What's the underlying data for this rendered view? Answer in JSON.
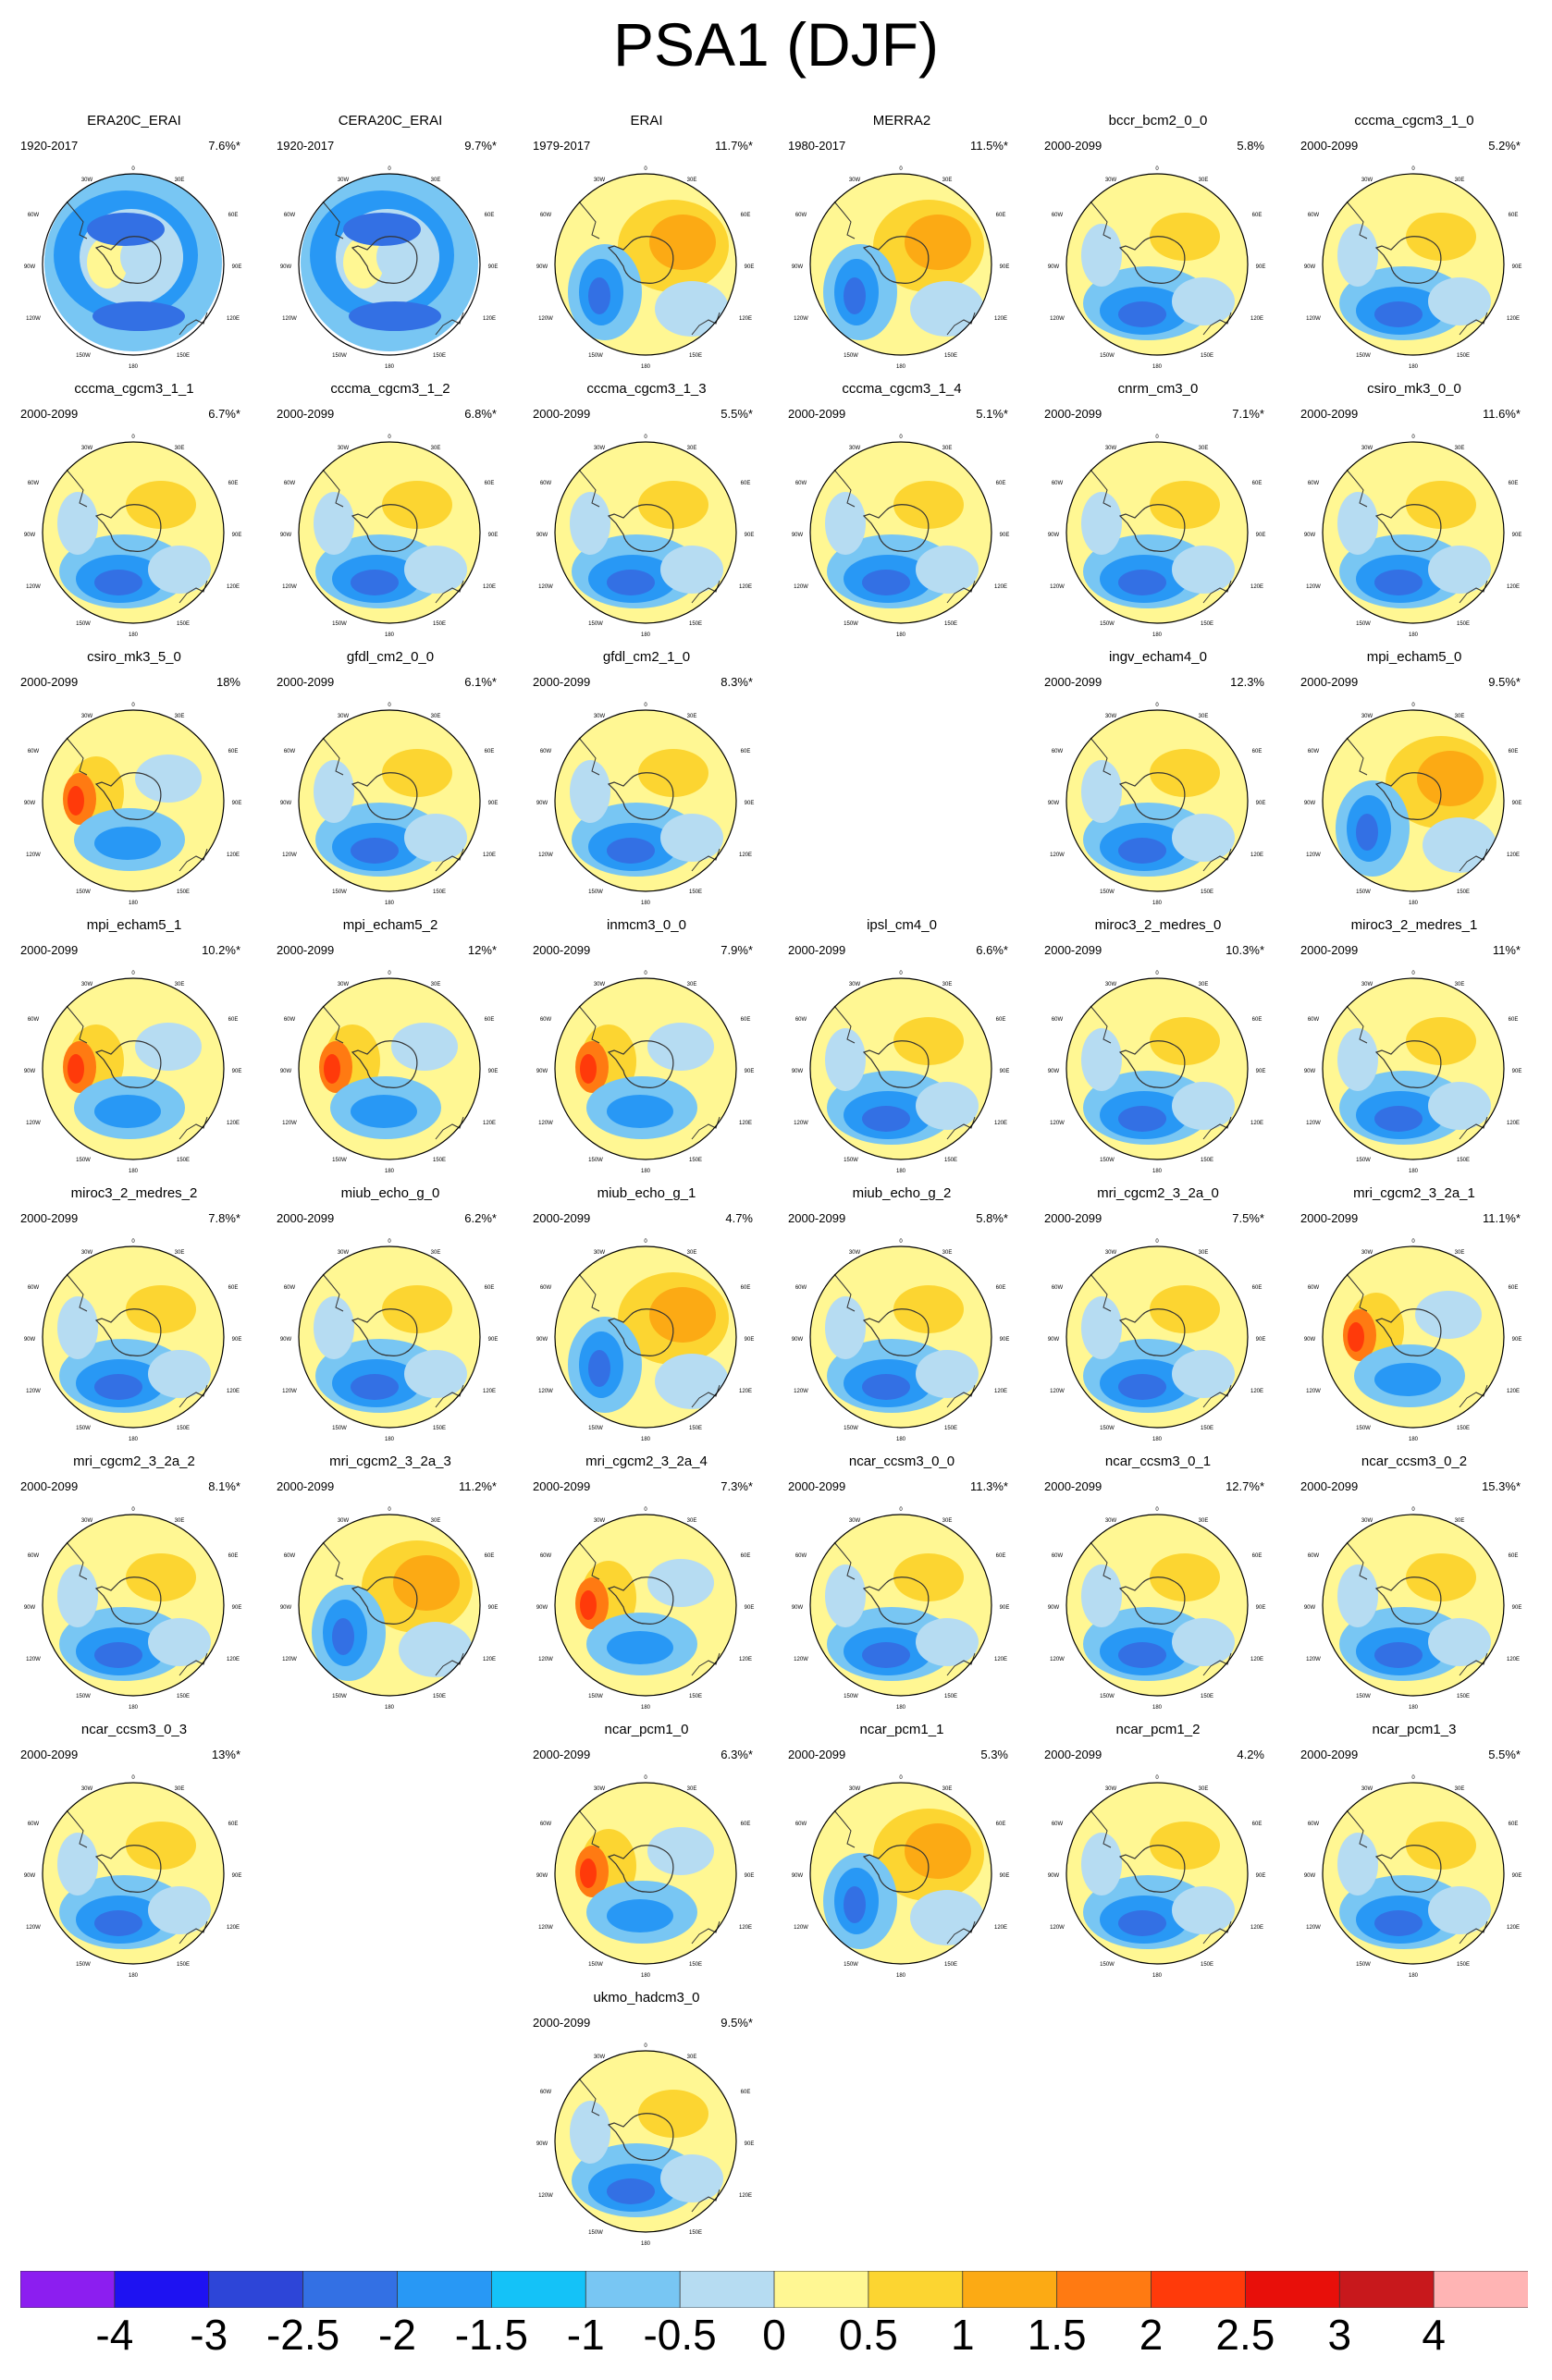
{
  "title": "PSA1 (DJF)",
  "grid_columns": 6,
  "panels": [
    {
      "name": "ERA20C_ERAI",
      "period": "1920-2017",
      "variance": "7.6%*",
      "row": 0,
      "col": 0,
      "scheme": "ring"
    },
    {
      "name": "CERA20C_ERAI",
      "period": "1920-2017",
      "variance": "9.7%*",
      "row": 0,
      "col": 1,
      "scheme": "ring"
    },
    {
      "name": "ERAI",
      "period": "1979-2017",
      "variance": "11.7%*",
      "row": 0,
      "col": 2,
      "scheme": "warm"
    },
    {
      "name": "MERRA2",
      "period": "1980-2017",
      "variance": "11.5%*",
      "row": 0,
      "col": 3,
      "scheme": "warm"
    },
    {
      "name": "bccr_bcm2_0_0",
      "period": "2000-2099",
      "variance": "5.8%",
      "row": 0,
      "col": 4,
      "scheme": "std"
    },
    {
      "name": "cccma_cgcm3_1_0",
      "period": "2000-2099",
      "variance": "5.2%*",
      "row": 0,
      "col": 5,
      "scheme": "std"
    },
    {
      "name": "cccma_cgcm3_1_1",
      "period": "2000-2099",
      "variance": "6.7%*",
      "row": 1,
      "col": 0,
      "scheme": "std"
    },
    {
      "name": "cccma_cgcm3_1_2",
      "period": "2000-2099",
      "variance": "6.8%*",
      "row": 1,
      "col": 1,
      "scheme": "std"
    },
    {
      "name": "cccma_cgcm3_1_3",
      "period": "2000-2099",
      "variance": "5.5%*",
      "row": 1,
      "col": 2,
      "scheme": "std"
    },
    {
      "name": "cccma_cgcm3_1_4",
      "period": "2000-2099",
      "variance": "5.1%*",
      "row": 1,
      "col": 3,
      "scheme": "std"
    },
    {
      "name": "cnrm_cm3_0",
      "period": "2000-2099",
      "variance": "7.1%*",
      "row": 1,
      "col": 4,
      "scheme": "std"
    },
    {
      "name": "csiro_mk3_0_0",
      "period": "2000-2099",
      "variance": "11.6%*",
      "row": 1,
      "col": 5,
      "scheme": "std"
    },
    {
      "name": "csiro_mk3_5_0",
      "period": "2000-2099",
      "variance": "18%",
      "row": 2,
      "col": 0,
      "scheme": "hot"
    },
    {
      "name": "gfdl_cm2_0_0",
      "period": "2000-2099",
      "variance": "6.1%*",
      "row": 2,
      "col": 1,
      "scheme": "std"
    },
    {
      "name": "gfdl_cm2_1_0",
      "period": "2000-2099",
      "variance": "8.3%*",
      "row": 2,
      "col": 2,
      "scheme": "std"
    },
    {
      "name": "ingv_echam4_0",
      "period": "2000-2099",
      "variance": "12.3%",
      "row": 2,
      "col": 4,
      "scheme": "std"
    },
    {
      "name": "mpi_echam5_0",
      "period": "2000-2099",
      "variance": "9.5%*",
      "row": 2,
      "col": 5,
      "scheme": "warm"
    },
    {
      "name": "mpi_echam5_1",
      "period": "2000-2099",
      "variance": "10.2%*",
      "row": 3,
      "col": 0,
      "scheme": "hot"
    },
    {
      "name": "mpi_echam5_2",
      "period": "2000-2099",
      "variance": "12%*",
      "row": 3,
      "col": 1,
      "scheme": "hot"
    },
    {
      "name": "inmcm3_0_0",
      "period": "2000-2099",
      "variance": "7.9%*",
      "row": 3,
      "col": 2,
      "scheme": "hot"
    },
    {
      "name": "ipsl_cm4_0",
      "period": "2000-2099",
      "variance": "6.6%*",
      "row": 3,
      "col": 3,
      "scheme": "std"
    },
    {
      "name": "miroc3_2_medres_0",
      "period": "2000-2099",
      "variance": "10.3%*",
      "row": 3,
      "col": 4,
      "scheme": "std"
    },
    {
      "name": "miroc3_2_medres_1",
      "period": "2000-2099",
      "variance": "11%*",
      "row": 3,
      "col": 5,
      "scheme": "std"
    },
    {
      "name": "miroc3_2_medres_2",
      "period": "2000-2099",
      "variance": "7.8%*",
      "row": 4,
      "col": 0,
      "scheme": "std"
    },
    {
      "name": "miub_echo_g_0",
      "period": "2000-2099",
      "variance": "6.2%*",
      "row": 4,
      "col": 1,
      "scheme": "std"
    },
    {
      "name": "miub_echo_g_1",
      "period": "2000-2099",
      "variance": "4.7%",
      "row": 4,
      "col": 2,
      "scheme": "warm"
    },
    {
      "name": "miub_echo_g_2",
      "period": "2000-2099",
      "variance": "5.8%*",
      "row": 4,
      "col": 3,
      "scheme": "std"
    },
    {
      "name": "mri_cgcm2_3_2a_0",
      "period": "2000-2099",
      "variance": "7.5%*",
      "row": 4,
      "col": 4,
      "scheme": "std"
    },
    {
      "name": "mri_cgcm2_3_2a_1",
      "period": "2000-2099",
      "variance": "11.1%*",
      "row": 4,
      "col": 5,
      "scheme": "hot"
    },
    {
      "name": "mri_cgcm2_3_2a_2",
      "period": "2000-2099",
      "variance": "8.1%*",
      "row": 5,
      "col": 0,
      "scheme": "std"
    },
    {
      "name": "mri_cgcm2_3_2a_3",
      "period": "2000-2099",
      "variance": "11.2%*",
      "row": 5,
      "col": 1,
      "scheme": "warm"
    },
    {
      "name": "mri_cgcm2_3_2a_4",
      "period": "2000-2099",
      "variance": "7.3%*",
      "row": 5,
      "col": 2,
      "scheme": "hot"
    },
    {
      "name": "ncar_ccsm3_0_0",
      "period": "2000-2099",
      "variance": "11.3%*",
      "row": 5,
      "col": 3,
      "scheme": "std"
    },
    {
      "name": "ncar_ccsm3_0_1",
      "period": "2000-2099",
      "variance": "12.7%*",
      "row": 5,
      "col": 4,
      "scheme": "std"
    },
    {
      "name": "ncar_ccsm3_0_2",
      "period": "2000-2099",
      "variance": "15.3%*",
      "row": 5,
      "col": 5,
      "scheme": "std"
    },
    {
      "name": "ncar_ccsm3_0_3",
      "period": "2000-2099",
      "variance": "13%*",
      "row": 6,
      "col": 0,
      "scheme": "std"
    },
    {
      "name": "ncar_pcm1_0",
      "period": "2000-2099",
      "variance": "6.3%*",
      "row": 6,
      "col": 2,
      "scheme": "hot"
    },
    {
      "name": "ncar_pcm1_1",
      "period": "2000-2099",
      "variance": "5.3%",
      "row": 6,
      "col": 3,
      "scheme": "warm"
    },
    {
      "name": "ncar_pcm1_2",
      "period": "2000-2099",
      "variance": "4.2%",
      "row": 6,
      "col": 4,
      "scheme": "std"
    },
    {
      "name": "ncar_pcm1_3",
      "period": "2000-2099",
      "variance": "5.5%*",
      "row": 6,
      "col": 5,
      "scheme": "std"
    },
    {
      "name": "ukmo_hadcm3_0",
      "period": "2000-2099",
      "variance": "9.5%*",
      "row": 7,
      "col": 2,
      "scheme": "std"
    }
  ],
  "map_labels": {
    "top": "0",
    "upper_left": "30W",
    "upper_right": "30E",
    "left_upper": "60W",
    "right_upper": "60E",
    "left": "90W",
    "right": "90E",
    "left_lower": "120W",
    "right_lower": "120E",
    "lower_left": "150W",
    "lower_right": "150E",
    "bottom": "180"
  },
  "colorbar": {
    "colors": [
      "#8c1ef0",
      "#1e12f2",
      "#2d45d8",
      "#3370e4",
      "#2898f5",
      "#14c2f8",
      "#78c6f3",
      "#b6dcf2",
      "#fff793",
      "#fcd531",
      "#fcaa14",
      "#ff7a12",
      "#ff3a0a",
      "#e80f0a",
      "#c8181c",
      "#ffb4b4"
    ],
    "labels": [
      "-4",
      "-3",
      "-2.5",
      "-2",
      "-1.5",
      "-1",
      "-0.5",
      "0",
      "0.5",
      "1",
      "1.5",
      "2",
      "2.5",
      "3",
      "4"
    ]
  }
}
